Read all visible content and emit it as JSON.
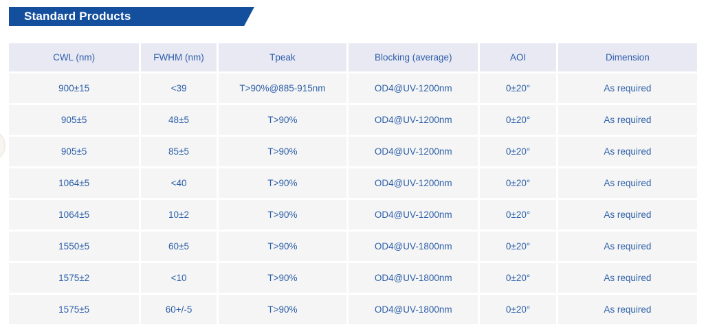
{
  "banner": {
    "title": "Standard Products"
  },
  "table": {
    "columns": [
      {
        "key": "cwl",
        "label": "CWL (nm)"
      },
      {
        "key": "fwhm",
        "label": "FWHM (nm)"
      },
      {
        "key": "tpeak",
        "label": "Tpeak"
      },
      {
        "key": "blocking",
        "label": "Blocking (average)"
      },
      {
        "key": "aoi",
        "label": "AOI"
      },
      {
        "key": "dimension",
        "label": "Dimension"
      }
    ],
    "rows": [
      [
        "900±15",
        "<39",
        "T>90%@885-915nm",
        "OD4@UV-1200nm",
        "0±20°",
        "As required"
      ],
      [
        "905±5",
        "48±5",
        "T>90%",
        "OD4@UV-1200nm",
        "0±20°",
        "As required"
      ],
      [
        "905±5",
        "85±5",
        "T>90%",
        "OD4@UV-1200nm",
        "0±20°",
        "As required"
      ],
      [
        "1064±5",
        "<40",
        "T>90%",
        "OD4@UV-1200nm",
        "0±20°",
        "As required"
      ],
      [
        "1064±5",
        "10±2",
        "T>90%",
        "OD4@UV-1200nm",
        "0±20°",
        "As required"
      ],
      [
        "1550±5",
        "60±5",
        "T>90%",
        "OD4@UV-1800nm",
        "0±20°",
        "As required"
      ],
      [
        "1575±2",
        "<10",
        "T>90%",
        "OD4@UV-1800nm",
        "0±20°",
        "As required"
      ],
      [
        "1575±5",
        "60+/-5",
        "T>90%",
        "OD4@UV-1800nm",
        "0±20°",
        "As required"
      ]
    ]
  },
  "colors": {
    "banner_bg": "#144f9e",
    "banner_text": "#ffffff",
    "header_bg": "#e9e9f3",
    "row_bg": "#f4f5f4",
    "text_blue": "#2e5fa9"
  }
}
